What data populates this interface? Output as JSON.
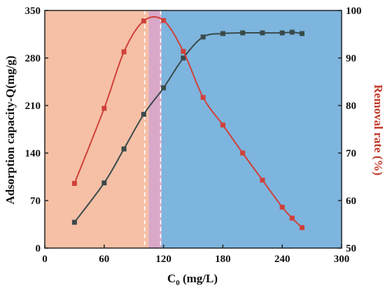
{
  "chart_data": {
    "type": "line",
    "xlabel": "C0 (mg/L)",
    "xlabel_main": "C",
    "xlabel_sub": "0",
    "xlabel_rest": " (mg/L)",
    "ylabel_left": "Adsorption capacity-Q(mg/g)",
    "ylabel_right": "Removal rate (%)",
    "xlim": [
      0,
      300
    ],
    "ylim_left": [
      0,
      350
    ],
    "ylim_right": [
      50,
      100
    ],
    "x_ticks": [
      0,
      60,
      120,
      180,
      240,
      300
    ],
    "y_left_ticks": [
      0,
      70,
      140,
      210,
      280,
      350
    ],
    "y_right_ticks": [
      50,
      60,
      70,
      80,
      90,
      100
    ],
    "grid": false,
    "background_regions": [
      {
        "name": "left-region",
        "x_start": 0,
        "x_end": 105,
        "color": "#f5c0a6"
      },
      {
        "name": "transition-region",
        "x_start": 105,
        "x_end": 118,
        "color": "#d9a8c8"
      },
      {
        "name": "right-region",
        "x_start": 118,
        "x_end": 300,
        "color": "#7db5de"
      }
    ],
    "reference_lines": [
      101,
      117
    ],
    "series": [
      {
        "axis": "left",
        "color": "#3a4a4a",
        "x": [
          30,
          60,
          80,
          100,
          120,
          140,
          160,
          180,
          200,
          220,
          240,
          250,
          260
        ],
        "values": [
          38,
          96,
          146,
          197,
          236,
          280,
          311,
          316,
          317,
          317,
          317,
          318,
          316
        ]
      },
      {
        "axis": "right",
        "color": "#d0413a",
        "x": [
          30,
          60,
          80,
          100,
          120,
          140,
          160,
          180,
          200,
          220,
          240,
          250,
          260
        ],
        "values": [
          63.6,
          79.4,
          91.3,
          97.8,
          97.9,
          91.4,
          81.7,
          75.9,
          70.0,
          64.3,
          58.6,
          56.3,
          54.3
        ]
      }
    ]
  }
}
